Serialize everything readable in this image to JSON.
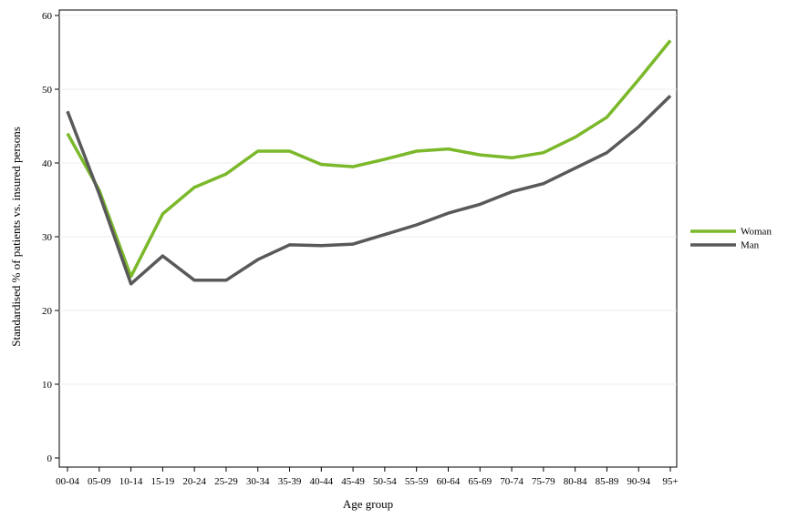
{
  "chart_data": {
    "type": "line",
    "xlabel": "Age group",
    "ylabel": "Standardised % of patients vs. insured persons",
    "ylim": [
      0,
      60
    ],
    "yticks": [
      0,
      10,
      20,
      30,
      40,
      50,
      60
    ],
    "grid": "horizontal",
    "legend_position": "right",
    "categories": [
      "00-04",
      "05-09",
      "10-14",
      "15-19",
      "20-24",
      "25-29",
      "30-34",
      "35-39",
      "40-44",
      "45-49",
      "50-54",
      "55-59",
      "60-64",
      "65-69",
      "70-74",
      "75-79",
      "80-84",
      "85-89",
      "90-94",
      "95+"
    ],
    "series": [
      {
        "name": "Woman",
        "color": "#7bb82a",
        "values": [
          44.0,
          36.3,
          24.6,
          33.1,
          36.7,
          38.5,
          41.6,
          41.6,
          39.8,
          39.5,
          40.5,
          41.6,
          41.9,
          41.1,
          40.7,
          41.4,
          43.5,
          46.2,
          51.3,
          56.6
        ]
      },
      {
        "name": "Man",
        "color": "#595959",
        "values": [
          47.0,
          35.8,
          23.6,
          27.4,
          24.1,
          24.1,
          26.9,
          28.9,
          28.8,
          29.0,
          30.3,
          31.6,
          33.2,
          34.4,
          36.1,
          37.2,
          39.3,
          41.4,
          44.9,
          49.1
        ]
      }
    ]
  }
}
